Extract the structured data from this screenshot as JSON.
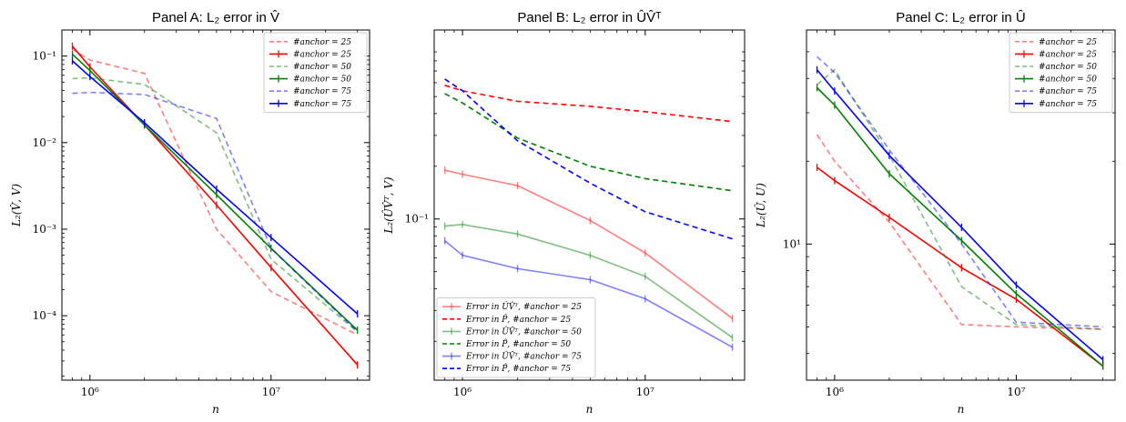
{
  "chart_data": [
    {
      "type": "line",
      "title": "Panel A: L₂ error in V̂",
      "xlabel": "n",
      "ylabel": "L₂(V̂, V)",
      "xscale": "log",
      "yscale": "log",
      "xlim": [
        700000,
        35000000
      ],
      "ylim": [
        1.8e-05,
        0.2
      ],
      "xticks": [
        {
          "v": 1000000,
          "label": "10⁶"
        },
        {
          "v": 10000000,
          "label": "10⁷"
        }
      ],
      "yticks": [
        {
          "v": 0.0001,
          "label": "10⁻⁴"
        },
        {
          "v": 0.001,
          "label": "10⁻³"
        },
        {
          "v": 0.01,
          "label": "10⁻²"
        },
        {
          "v": 0.1,
          "label": "10⁻¹"
        }
      ],
      "legend_position": "top-right",
      "series": [
        {
          "name": "#anchor = 25",
          "color": "#ff0000",
          "style": "dashed",
          "opacity": 0.5,
          "marker": "none",
          "x": [
            800000,
            1000000,
            2000000,
            5000000,
            10000000,
            30000000
          ],
          "y": [
            0.12,
            0.09,
            0.063,
            0.001,
            0.00019,
            6e-05
          ]
        },
        {
          "name": "#anchor = 25",
          "color": "#ff0000",
          "style": "solid",
          "opacity": 1,
          "marker": "bar",
          "x": [
            800000,
            1000000,
            2000000,
            5000000,
            10000000,
            30000000
          ],
          "y": [
            0.13,
            0.075,
            0.016,
            0.0019,
            0.00036,
            2.7e-05
          ]
        },
        {
          "name": "#anchor = 50",
          "color": "#008000",
          "style": "dashed",
          "opacity": 0.5,
          "marker": "none",
          "x": [
            800000,
            1000000,
            2000000,
            5000000,
            10000000,
            30000000
          ],
          "y": [
            0.055,
            0.056,
            0.047,
            0.013,
            0.00045,
            6.5e-05
          ]
        },
        {
          "name": "#anchor = 50",
          "color": "#008000",
          "style": "solid",
          "opacity": 1,
          "marker": "bar",
          "x": [
            800000,
            1000000,
            2000000,
            5000000,
            10000000,
            30000000
          ],
          "y": [
            0.105,
            0.068,
            0.016,
            0.0025,
            0.0006,
            6.8e-05
          ]
        },
        {
          "name": "#anchor = 75",
          "color": "#0000ff",
          "style": "dashed",
          "opacity": 0.5,
          "marker": "none",
          "x": [
            800000,
            1000000,
            2000000,
            5000000,
            10000000,
            30000000
          ],
          "y": [
            0.037,
            0.038,
            0.036,
            0.019,
            0.0006,
            6.5e-05
          ]
        },
        {
          "name": "#anchor = 75",
          "color": "#0000ff",
          "style": "solid",
          "opacity": 1,
          "marker": "bar",
          "x": [
            800000,
            1000000,
            2000000,
            5000000,
            10000000,
            30000000
          ],
          "y": [
            0.088,
            0.058,
            0.017,
            0.0029,
            0.0008,
            0.000105
          ]
        }
      ]
    },
    {
      "type": "line",
      "title": "Panel B: L₂ error in ÛV̂ᵀ",
      "xlabel": "n",
      "ylabel": "L₂(ÛV̂ᵀ, V)",
      "xscale": "log",
      "yscale": "log",
      "xlim": [
        700000,
        35000000
      ],
      "ylim": [
        0.012,
        1.2
      ],
      "xticks": [
        {
          "v": 1000000,
          "label": "10⁶"
        },
        {
          "v": 10000000,
          "label": "10⁷"
        }
      ],
      "yticks": [
        {
          "v": 0.1,
          "label": "10⁻¹"
        }
      ],
      "legend_position": "bottom-left",
      "series": [
        {
          "name": "Error in ÛV̂ᵀ, #anchor = 25",
          "color": "#ff0000",
          "style": "solid",
          "opacity": 0.5,
          "marker": "bar",
          "x": [
            800000,
            1000000,
            2000000,
            5000000,
            10000000,
            30000000
          ],
          "y": [
            0.19,
            0.18,
            0.155,
            0.098,
            0.064,
            0.027
          ]
        },
        {
          "name": "Error in P̂, #anchor = 25",
          "color": "#ff0000",
          "style": "dashed",
          "opacity": 1,
          "marker": "none",
          "x": [
            800000,
            1000000,
            2000000,
            5000000,
            10000000,
            30000000
          ],
          "y": [
            0.58,
            0.54,
            0.47,
            0.44,
            0.41,
            0.36
          ]
        },
        {
          "name": "Error in ÛV̂ᵀ, #anchor = 50",
          "color": "#008000",
          "style": "solid",
          "opacity": 0.5,
          "marker": "bar",
          "x": [
            800000,
            1000000,
            2000000,
            5000000,
            10000000,
            30000000
          ],
          "y": [
            0.091,
            0.093,
            0.082,
            0.062,
            0.047,
            0.021
          ]
        },
        {
          "name": "Error in P̂, #anchor = 50",
          "color": "#008000",
          "style": "dashed",
          "opacity": 1,
          "marker": "none",
          "x": [
            800000,
            1000000,
            2000000,
            5000000,
            10000000,
            30000000
          ],
          "y": [
            0.52,
            0.46,
            0.29,
            0.2,
            0.17,
            0.145
          ]
        },
        {
          "name": "Error in ÛV̂ᵀ, #anchor = 75",
          "color": "#0000ff",
          "style": "solid",
          "opacity": 0.5,
          "marker": "bar",
          "x": [
            800000,
            1000000,
            2000000,
            5000000,
            10000000,
            30000000
          ],
          "y": [
            0.075,
            0.062,
            0.052,
            0.045,
            0.035,
            0.0185
          ]
        },
        {
          "name": "Error in P̂, #anchor = 75",
          "color": "#0000ff",
          "style": "dashed",
          "opacity": 1,
          "marker": "none",
          "x": [
            800000,
            1000000,
            2000000,
            5000000,
            10000000,
            30000000
          ],
          "y": [
            0.63,
            0.54,
            0.28,
            0.16,
            0.11,
            0.077
          ]
        }
      ]
    },
    {
      "type": "line",
      "title": "Panel C: L₂ error in Û",
      "xlabel": "n",
      "ylabel": "L₂(Û, U)",
      "xscale": "log",
      "yscale": "log",
      "xlim": [
        700000,
        35000000
      ],
      "ylim": [
        3.2,
        60
      ],
      "xticks": [
        {
          "v": 1000000,
          "label": "10⁶"
        },
        {
          "v": 10000000,
          "label": "10⁷"
        }
      ],
      "yticks": [
        {
          "v": 10,
          "label": "10¹"
        }
      ],
      "legend_position": "top-right",
      "series": [
        {
          "name": "#anchor = 25",
          "color": "#ff0000",
          "style": "dashed",
          "opacity": 0.5,
          "marker": "none",
          "x": [
            800000,
            1000000,
            2000000,
            5000000,
            10000000,
            30000000
          ],
          "y": [
            25,
            20,
            12,
            5.1,
            5.0,
            4.9
          ]
        },
        {
          "name": "#anchor = 25",
          "color": "#ff0000",
          "style": "solid",
          "opacity": 1,
          "marker": "bar",
          "x": [
            800000,
            1000000,
            2000000,
            5000000,
            10000000,
            30000000
          ],
          "y": [
            19,
            17,
            12.5,
            8.2,
            6.3,
            3.6
          ]
        },
        {
          "name": "#anchor = 50",
          "color": "#008000",
          "style": "dashed",
          "opacity": 0.5,
          "marker": "none",
          "x": [
            800000,
            1000000,
            2000000,
            5000000,
            10000000,
            30000000
          ],
          "y": [
            38,
            43,
            21,
            7.0,
            5.1,
            4.9
          ]
        },
        {
          "name": "#anchor = 50",
          "color": "#008000",
          "style": "solid",
          "opacity": 1,
          "marker": "bar",
          "x": [
            800000,
            1000000,
            2000000,
            5000000,
            10000000,
            30000000
          ],
          "y": [
            37,
            32,
            18,
            10.3,
            6.6,
            3.6
          ]
        },
        {
          "name": "#anchor = 75",
          "color": "#0000ff",
          "style": "dashed",
          "opacity": 0.5,
          "marker": "none",
          "x": [
            800000,
            1000000,
            2000000,
            5000000,
            10000000,
            30000000
          ],
          "y": [
            48,
            42,
            22,
            10,
            5.2,
            5.0
          ]
        },
        {
          "name": "#anchor = 75",
          "color": "#0000ff",
          "style": "solid",
          "opacity": 1,
          "marker": "bar",
          "x": [
            800000,
            1000000,
            2000000,
            5000000,
            10000000,
            30000000
          ],
          "y": [
            43,
            36,
            21,
            11.5,
            7.1,
            3.8
          ]
        }
      ]
    }
  ]
}
